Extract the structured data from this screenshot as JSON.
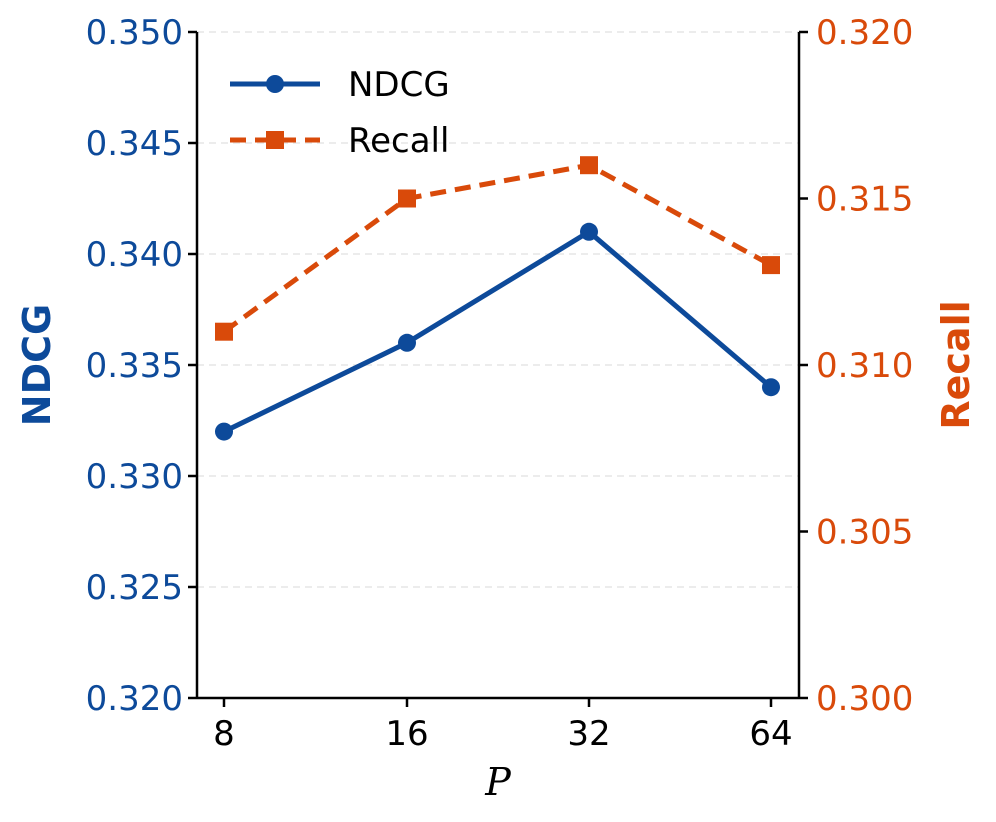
{
  "chart_data": {
    "type": "line",
    "title": "",
    "xlabel": "P",
    "categories": [
      "8",
      "16",
      "32",
      "64"
    ],
    "y_left": {
      "label": "NDCG",
      "ylim": [
        0.32,
        0.35
      ],
      "ticks": [
        "0.320",
        "0.325",
        "0.330",
        "0.335",
        "0.340",
        "0.345",
        "0.350"
      ],
      "color": "#0d4a9a"
    },
    "y_right": {
      "label": "Recall",
      "ylim": [
        0.3,
        0.32
      ],
      "ticks": [
        "0.300",
        "0.305",
        "0.310",
        "0.315",
        "0.320"
      ],
      "color": "#d94a0a"
    },
    "series": [
      {
        "name": "NDCG",
        "axis": "left",
        "values": [
          0.332,
          0.336,
          0.341,
          0.334
        ],
        "color": "#0d4a9a",
        "style": "solid",
        "marker": "circle"
      },
      {
        "name": "Recall",
        "axis": "right",
        "values": [
          0.311,
          0.315,
          0.316,
          0.313
        ],
        "color": "#d94a0a",
        "style": "dashed",
        "marker": "square"
      }
    ],
    "legend": {
      "position": "top-left"
    },
    "grid": "horizontal-dashed"
  }
}
